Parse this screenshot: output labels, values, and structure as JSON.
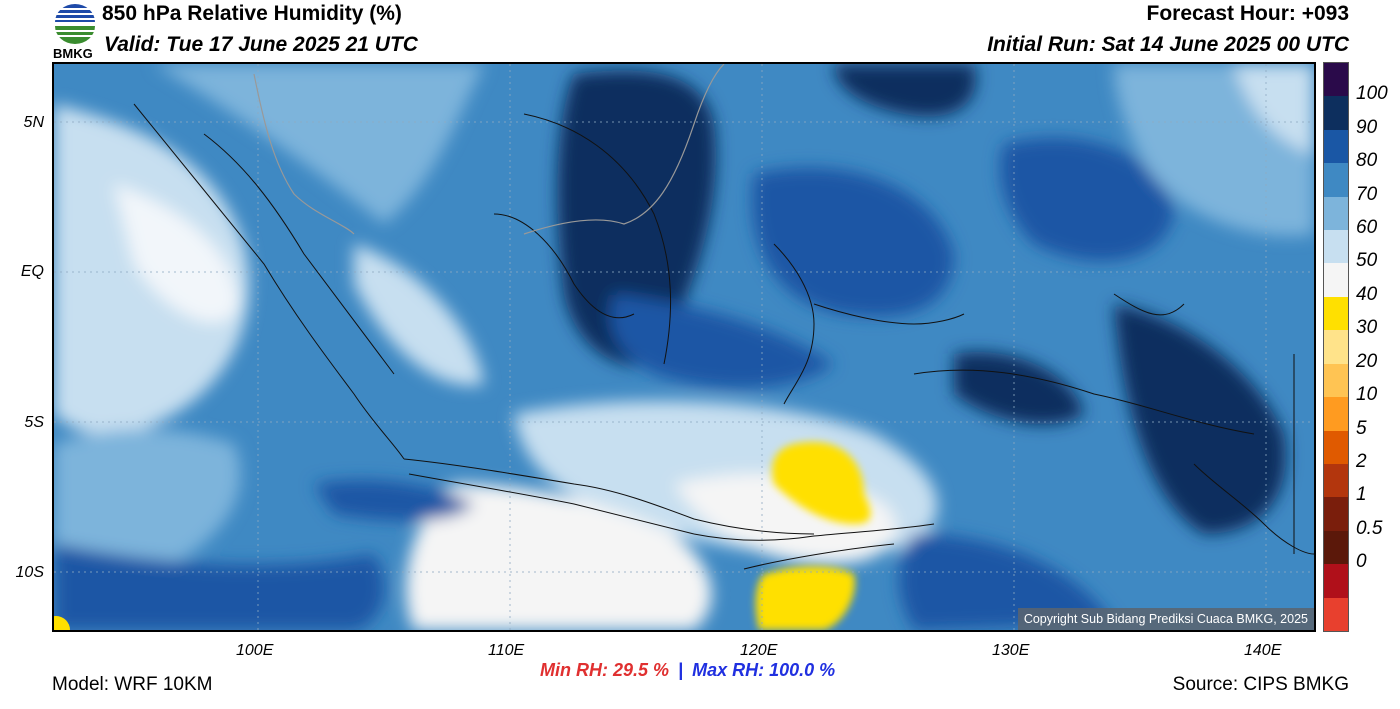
{
  "header": {
    "title": "850 hPa Relative Humidity (%)",
    "valid": "Valid: Tue 17 June 2025 21 UTC",
    "forecast_hour": "Forecast Hour: +093",
    "initial_run": "Initial Run: Sat 14 June 2025 00 UTC"
  },
  "logo": {
    "text": "BMKG",
    "colors": [
      "#1e4aa8",
      "#ffffff",
      "#3a8c2f"
    ]
  },
  "map": {
    "lat_labels": [
      "5N",
      "EQ",
      "5S",
      "10S"
    ],
    "lon_labels": [
      "100E",
      "110E",
      "120E",
      "130E",
      "140E"
    ],
    "copyright": "Copyright Sub Bidang Prediksi Cuaca BMKG, 2025"
  },
  "colorbar": {
    "labels": [
      "100",
      "90",
      "80",
      "70",
      "60",
      "50",
      "40",
      "30",
      "20",
      "10",
      "5",
      "2",
      "1",
      "0.5",
      "0"
    ],
    "colors": [
      "#2a0a4a",
      "#0d2f5e",
      "#1a57a5",
      "#3f89c3",
      "#7db4db",
      "#c7dff0",
      "#f5f5f5",
      "#ffe000",
      "#ffe38a",
      "#ffc453",
      "#ff9b20",
      "#e05a00",
      "#b3360d",
      "#7a1e0c",
      "#5b180a",
      "#b0101a",
      "#e8402e"
    ]
  },
  "stats": {
    "min_label": "Min RH:  29.5 %",
    "separator": "|",
    "max_label": "Max RH: 100.0 %",
    "min_color": "#e03030",
    "max_color": "#2030e0"
  },
  "footer": {
    "model": "Model: WRF 10KM",
    "source": "Source: CIPS BMKG"
  }
}
